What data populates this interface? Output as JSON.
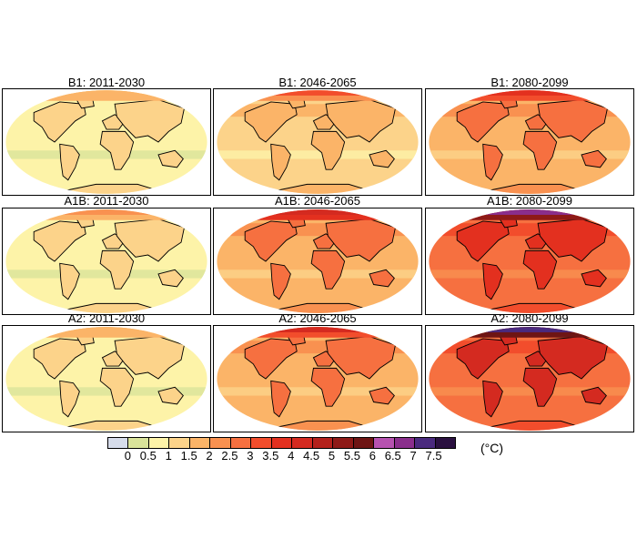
{
  "panels": [
    {
      "title": "B1: 2011-2030",
      "ocean": 0.7,
      "land": 1.2,
      "arctic": 1.8
    },
    {
      "title": "B1: 2046-2065",
      "ocean": 1.2,
      "land": 1.8,
      "arctic": 3.0
    },
    {
      "title": "B1: 2080-2099",
      "ocean": 1.7,
      "land": 2.7,
      "arctic": 3.8
    },
    {
      "title": "A1B: 2011-2030",
      "ocean": 0.7,
      "land": 1.2,
      "arctic": 2.0
    },
    {
      "title": "A1B: 2046-2065",
      "ocean": 1.7,
      "land": 2.8,
      "arctic": 4.2
    },
    {
      "title": "A1B: 2080-2099",
      "ocean": 2.7,
      "land": 3.8,
      "arctic": 6.7
    },
    {
      "title": "A2: 2011-2030",
      "ocean": 0.7,
      "land": 1.2,
      "arctic": 1.8
    },
    {
      "title": "A2: 2046-2065",
      "ocean": 1.7,
      "land": 2.7,
      "arctic": 4.2
    },
    {
      "title": "A2: 2080-2099",
      "ocean": 2.7,
      "land": 4.2,
      "arctic": 7.2
    }
  ],
  "colorbar": {
    "unit": "(°C)",
    "ticks": [
      "0",
      "0.5",
      "1",
      "1.5",
      "2",
      "2.5",
      "3",
      "3.5",
      "4",
      "4.5",
      "5",
      "5.5",
      "6",
      "6.5",
      "7",
      "7.5"
    ],
    "colors": [
      "#d6dcea",
      "#d9e39a",
      "#fdf3a8",
      "#fcd38a",
      "#fbb468",
      "#f99150",
      "#f67040",
      "#f24d2c",
      "#e3301f",
      "#d42a20",
      "#b4211b",
      "#8e1a17",
      "#6e1514",
      "#b652b0",
      "#8a2e8c",
      "#4a2a7e",
      "#2a1040"
    ]
  }
}
